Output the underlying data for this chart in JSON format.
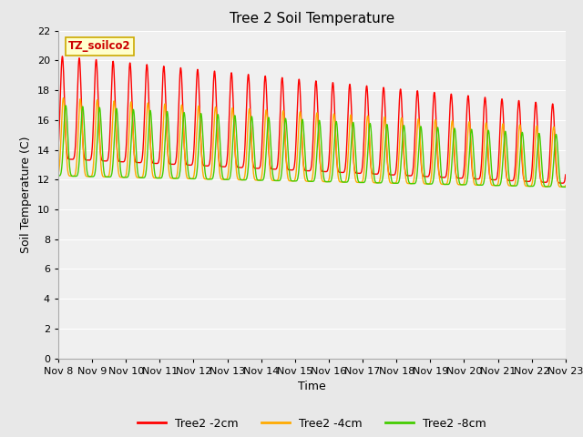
{
  "title": "Tree 2 Soil Temperature",
  "xlabel": "Time",
  "ylabel": "Soil Temperature (C)",
  "ylim": [
    0,
    22
  ],
  "yticks": [
    0,
    2,
    4,
    6,
    8,
    10,
    12,
    14,
    16,
    18,
    20,
    22
  ],
  "xtick_labels": [
    "Nov 8",
    "Nov 9",
    "Nov 10",
    "Nov 11",
    "Nov 12",
    "Nov 13",
    "Nov 14",
    "Nov 15",
    "Nov 16",
    "Nov 17",
    "Nov 18",
    "Nov 19",
    "Nov 20",
    "Nov 21",
    "Nov 22",
    "Nov 23"
  ],
  "label_box_text": "TZ_soilco2",
  "label_box_bg": "#ffffcc",
  "label_box_edge": "#ccaa00",
  "bg_color": "#e8e8e8",
  "plot_bg": "#f0f0f0",
  "line_colors": {
    "2cm": "#ff0000",
    "4cm": "#ffaa00",
    "8cm": "#44cc00"
  },
  "legend_labels": [
    "Tree2 -2cm",
    "Tree2 -4cm",
    "Tree2 -8cm"
  ],
  "title_fontsize": 11,
  "axis_label_fontsize": 9,
  "tick_fontsize": 8
}
